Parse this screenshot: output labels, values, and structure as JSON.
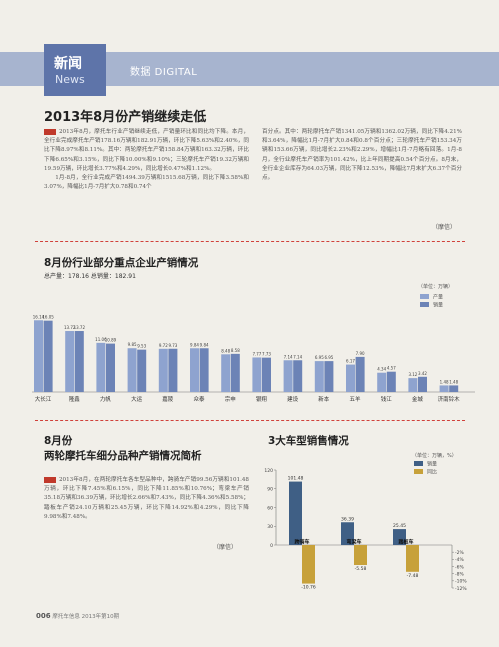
{
  "header": {
    "section_cn": "新闻",
    "section_en": "News",
    "label": "数据 DIGITAL"
  },
  "article1": {
    "title": "2013年8月份产销继续走低",
    "col1_p1": "2013年8月，摩托车行业产销继续走低，产销量环比和同比均下降。本月，全行业完成摩托车产销178.16万辆和182.91万辆，环比下降5.63%和2.40%，同比下降8.97%和8.11%。其中：两轮摩托车产销158.84万辆和163.32万辆，环比下降6.65%和3.15%，同比下降10.00%和9.10%；三轮摩托车产销19.32万辆和19.59万辆，环比增长3.77%和4.29%，同比增长0.47%和1.12%。",
    "col1_p2": "1月-8月，全行业完成产销1494.39万辆和1515.68万辆，同比下降3.58%和3.07%，降幅比1月-7月扩大0.78和0.74个",
    "col2_p1": "百分点。其中：两轮摩托车产销1341.05万辆和1362.02万辆，同比下降4.21%和3.64%，降幅比1月-7月扩大0.84和0.8个百分点；三轮摩托车产销153.34万辆和153.66万辆，同比增长2.23%和2.29%，增幅比1月-7月略有回落。1月-8月，全行业摩托车产销率为101.42%，比上年同期提高0.54个百分点。8月末，全行业企业库存为64.03万辆，同比下降12.53%，降幅比7月末扩大6.37个百分点。",
    "author": "（摩信）"
  },
  "chart1": {
    "title": "8月份行业部分重点企业产销情况",
    "subtitle": "总产量：178.16  总销量：182.91",
    "unit": "（单位：万辆）",
    "legend": [
      "产量",
      "销量"
    ]
  },
  "article2": {
    "title_line1": "8月份",
    "title_line2": "两轮摩托车细分品种产销情况简析",
    "body": "2013年8月，在两轮摩托车各车型品种中，跨骑车产销99.56万辆和101.48万辆，环比下降7.45%和6.15%，同比下降11.85%和10.76%；弯梁车产销35.18万辆和36.39万辆，环比增长2.66%和7.43%，同比下降4.36%和5.58%；踏板车产销24.10万辆和25.45万辆，环比下降14.92%和4.29%，同比下降9.98%和7.48%。",
    "author": "（摩信）"
  },
  "chart2": {
    "title": "3大车型销售情况",
    "unit": "（单位：万辆，%）",
    "legend": [
      "销量",
      "同比"
    ]
  },
  "footer": {
    "page": "006",
    "text": "摩托车信息 2013年第10期"
  },
  "chart_data": [
    {
      "type": "bar",
      "title": "8月份行业部分重点企业产销情况",
      "categories": [
        "大长江",
        "隆鑫",
        "力帆",
        "大运",
        "嘉陵",
        "众泰",
        "宗申",
        "银翔",
        "建设",
        "新本",
        "五羊",
        "钱江",
        "金城",
        "济南铃木"
      ],
      "series": [
        {
          "name": "产量",
          "values": [
            16.14,
            13.72,
            11.06,
            9.85,
            9.72,
            9.84,
            8.48,
            7.77,
            7.14,
            6.95,
            6.17,
            4.34,
            3.12,
            1.48
          ]
        },
        {
          "name": "销量",
          "values": [
            16.05,
            13.72,
            10.89,
            9.53,
            9.73,
            9.84,
            8.58,
            7.73,
            7.14,
            6.95,
            7.9,
            4.57,
            3.42,
            1.48
          ]
        }
      ],
      "unit": "万辆",
      "ylim": [
        0,
        18
      ]
    },
    {
      "type": "bar",
      "title": "3大车型销售情况",
      "categories": [
        "跨骑车",
        "弯梁车",
        "踏板车"
      ],
      "series": [
        {
          "name": "销量",
          "values": [
            101.48,
            36.39,
            25.45
          ]
        },
        {
          "name": "同比",
          "values": [
            -10.76,
            -5.58,
            -7.48
          ]
        }
      ],
      "left_axis_ticks": [
        0,
        30,
        60,
        90,
        120
      ],
      "right_axis_ticks": [
        "-2%",
        "-4%",
        "-6%",
        "-8%",
        "-10%",
        "-12%"
      ],
      "left_ylim": [
        0,
        120
      ],
      "right_ylim": [
        -12,
        0
      ]
    }
  ]
}
